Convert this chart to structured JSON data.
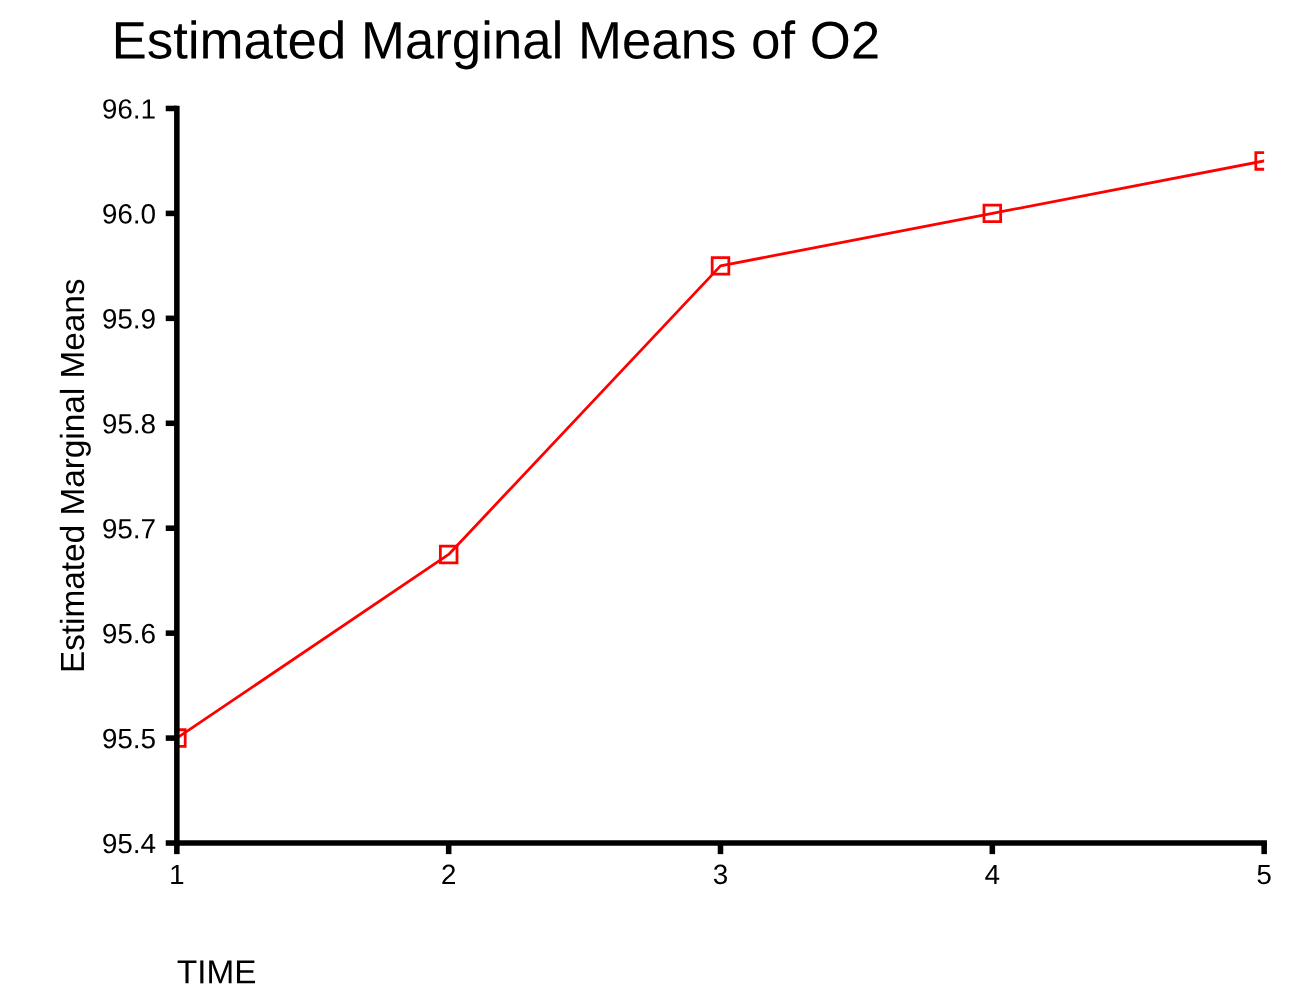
{
  "chart_data": {
    "type": "line",
    "title": "Estimated Marginal Means of O2",
    "xlabel": "TIME",
    "ylabel": "Estimated Marginal Means",
    "categories": [
      "1",
      "2",
      "3",
      "4",
      "5"
    ],
    "series": [
      {
        "color": "#ff0000",
        "values": [
          95.5,
          95.675,
          95.95,
          96.0,
          96.05
        ]
      }
    ],
    "ylim": [
      95.4,
      96.1
    ],
    "yticks": [
      {
        "value": 95.4,
        "label": "95.4"
      },
      {
        "value": 95.5,
        "label": "95.5"
      },
      {
        "value": 95.6,
        "label": "95.6"
      },
      {
        "value": 95.7,
        "label": "95.7"
      },
      {
        "value": 95.8,
        "label": "95.8"
      },
      {
        "value": 95.9,
        "label": "95.9"
      },
      {
        "value": 96.0,
        "label": "96.0"
      },
      {
        "value": 96.1,
        "label": "96.1"
      }
    ],
    "grid": false,
    "legend": false,
    "marker": "square",
    "line_style": "solid"
  }
}
